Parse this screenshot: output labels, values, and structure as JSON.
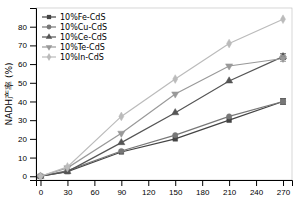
{
  "chart_data": {
    "type": "line",
    "y_label": "NADH产率 (%)",
    "x": [
      0,
      30,
      90,
      150,
      210,
      270
    ],
    "series": [
      {
        "name": "10%Fe-CdS",
        "color": "#444444",
        "marker": "square",
        "line_style": "solid",
        "values": [
          0,
          2.5,
          13,
          20,
          30,
          40
        ],
        "errors": [
          null,
          null,
          null,
          null,
          null,
          1.5
        ]
      },
      {
        "name": "10%Cu-CdS",
        "color": "#777777",
        "marker": "circle",
        "line_style": "solid",
        "values": [
          0,
          3,
          13.5,
          22,
          32,
          40
        ]
      },
      {
        "name": "10%Ce-CdS",
        "color": "#555555",
        "marker": "triangle-up",
        "line_style": "solid",
        "values": [
          0,
          2.5,
          18,
          34,
          51,
          64
        ],
        "errors": [
          null,
          null,
          null,
          null,
          null,
          1.5
        ]
      },
      {
        "name": "10%Te-CdS",
        "color": "#999999",
        "marker": "triangle-down",
        "line_style": "solid",
        "values": [
          0,
          4.5,
          23,
          44,
          59,
          63
        ],
        "errors": [
          null,
          null,
          null,
          null,
          null,
          1.5
        ]
      },
      {
        "name": "10%In-CdS",
        "color": "#bbbbbb",
        "marker": "diamond",
        "line_style": "solid",
        "values": [
          0,
          5,
          32,
          52,
          71,
          84
        ]
      }
    ],
    "xlim": [
      -5,
      280
    ],
    "ylim": [
      -2,
      90
    ],
    "xticks": [
      0,
      30,
      60,
      90,
      120,
      150,
      180,
      210,
      240,
      270
    ],
    "yticks": [
      0,
      10,
      20,
      30,
      40,
      50,
      60,
      70,
      80
    ],
    "legend": "upper left",
    "grid": false
  }
}
